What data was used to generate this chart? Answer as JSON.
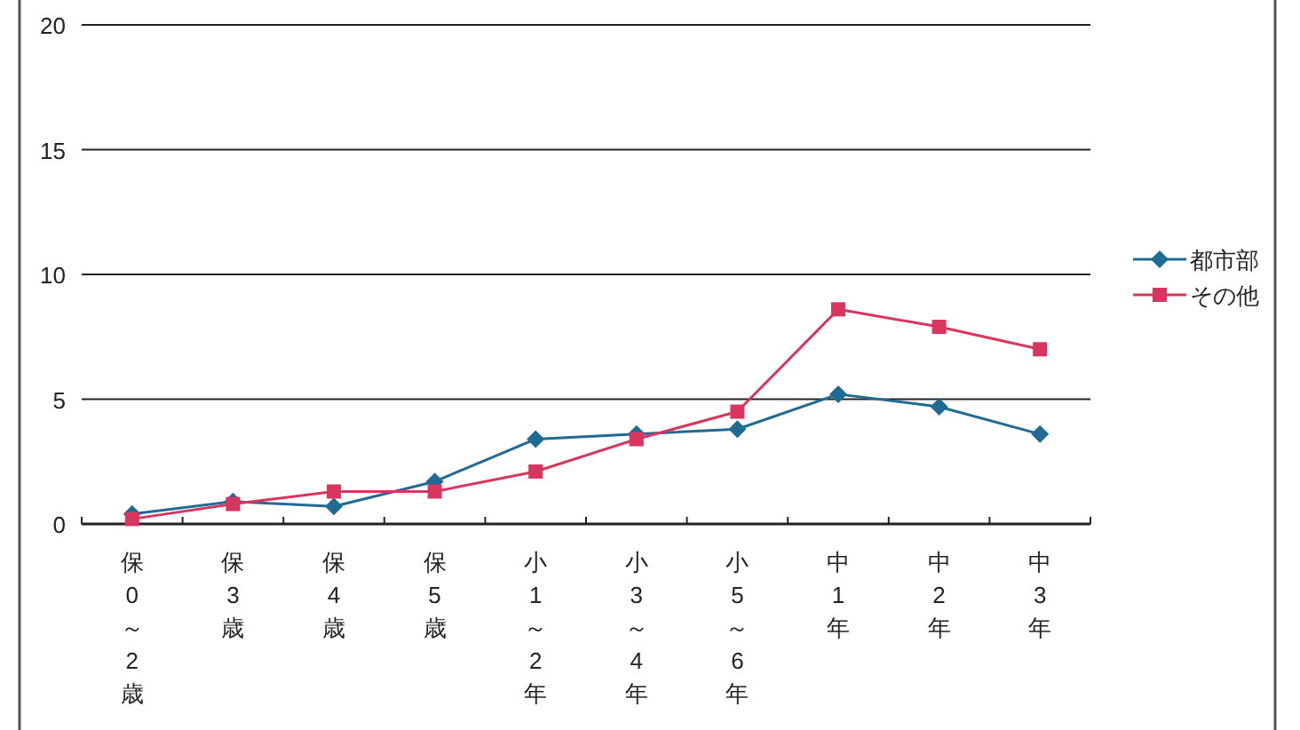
{
  "chart_data": {
    "type": "line",
    "categories": [
      "保0～2歳",
      "保3歳",
      "保4歳",
      "保5歳",
      "小1～2年",
      "小3～4年",
      "小5～6年",
      "中1年",
      "中2年",
      "中3年"
    ],
    "series": [
      {
        "name": "都市部",
        "color": "#1f6b94",
        "marker": "diamond",
        "values": [
          0.4,
          0.9,
          0.7,
          1.7,
          3.4,
          3.6,
          3.8,
          5.2,
          4.7,
          3.6
        ]
      },
      {
        "name": "その他",
        "color": "#d8365e",
        "marker": "square",
        "values": [
          0.2,
          0.8,
          1.3,
          1.3,
          2.1,
          3.4,
          4.5,
          8.6,
          7.9,
          7.0
        ]
      }
    ],
    "ylim": [
      0,
      20
    ],
    "yticks": [
      0,
      5,
      10,
      15,
      20
    ],
    "grid": "y",
    "legend": "right",
    "line_style": "solid"
  }
}
